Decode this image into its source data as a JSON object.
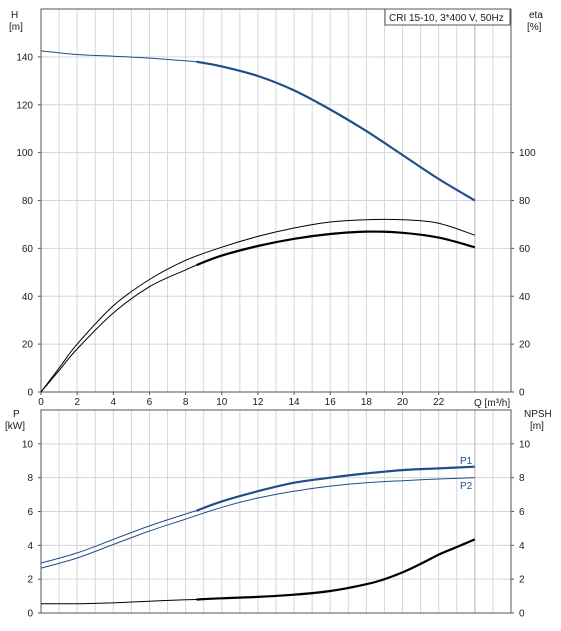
{
  "title": "CRI 15-10, 3*400 V, 50Hz",
  "colors": {
    "blue": "#1f4e8c",
    "black": "#000000",
    "grid": "#d6d6d6"
  },
  "chart_data": [
    {
      "type": "line",
      "panel": "top",
      "left_axis": {
        "label_line1": "H",
        "label_line2": "[m]",
        "range": [
          0,
          160
        ],
        "ticks": [
          "0",
          "20",
          "40",
          "60",
          "80",
          "100",
          "120",
          "140"
        ]
      },
      "right_axis": {
        "label_line1": "eta",
        "label_line2": "[%]",
        "range": [
          0,
          160
        ],
        "ticks": [
          "0",
          "20",
          "40",
          "60",
          "80",
          "100"
        ]
      },
      "x_axis": {
        "label": "Q [m³/h]",
        "range": [
          0,
          26
        ],
        "ticks": [
          "0",
          "2",
          "4",
          "6",
          "8",
          "10",
          "12",
          "14",
          "16",
          "18",
          "20",
          "22"
        ]
      },
      "series": [
        {
          "style": "blue-thin",
          "axis": "left",
          "x": [
            0,
            2,
            4,
            6,
            8.6
          ],
          "y": [
            142.5,
            141,
            140.3,
            139.5,
            138
          ]
        },
        {
          "style": "blue-thick",
          "axis": "left",
          "x": [
            8.6,
            10,
            12,
            14,
            16,
            18,
            20,
            22,
            24
          ],
          "y": [
            138,
            136,
            132,
            126,
            118,
            109,
            99,
            89,
            80
          ]
        },
        {
          "style": "black-thin",
          "axis": "right",
          "x": [
            0,
            1,
            2,
            4,
            6,
            8,
            10,
            12,
            14,
            16,
            18,
            20,
            22,
            24
          ],
          "y": [
            0,
            10,
            20,
            36,
            47,
            55,
            60.5,
            65,
            68.5,
            71,
            72,
            72,
            70.5,
            65.5
          ]
        },
        {
          "style": "black-thin",
          "axis": "right",
          "x": [
            0,
            1,
            2,
            4,
            6,
            8,
            8.6
          ],
          "y": [
            0,
            9,
            18,
            33,
            44,
            51,
            53
          ]
        },
        {
          "style": "black-thick",
          "axis": "right",
          "x": [
            8.6,
            10,
            12,
            14,
            16,
            18,
            20,
            22,
            24
          ],
          "y": [
            53,
            57,
            61,
            64,
            66,
            67,
            66.5,
            64.5,
            60.5
          ]
        }
      ]
    },
    {
      "type": "line",
      "panel": "bottom",
      "left_axis": {
        "label_line1": "P",
        "label_line2": "[kW]",
        "range": [
          0,
          12
        ],
        "ticks": [
          "0",
          "2",
          "4",
          "6",
          "8",
          "10"
        ]
      },
      "right_axis": {
        "label_line1": "NPSH",
        "label_line2": "[m]",
        "range": [
          0,
          12
        ],
        "ticks": [
          "0",
          "2",
          "4",
          "6",
          "8",
          "10"
        ]
      },
      "x_axis": {
        "range": [
          0,
          26
        ]
      },
      "series": [
        {
          "name": "P1",
          "style": "blue-thin",
          "axis": "left",
          "x": [
            0,
            2,
            4,
            6,
            8,
            8.6
          ],
          "y": [
            2.95,
            3.55,
            4.35,
            5.15,
            5.85,
            6.05
          ]
        },
        {
          "name": "P1",
          "style": "blue-thick",
          "axis": "left",
          "x": [
            8.6,
            10,
            12,
            14,
            16,
            18,
            20,
            22,
            24
          ],
          "y": [
            6.05,
            6.6,
            7.2,
            7.7,
            8.0,
            8.25,
            8.45,
            8.55,
            8.65
          ]
        },
        {
          "name": "P2",
          "style": "blue-thin",
          "axis": "left",
          "x": [
            0,
            2,
            4,
            6,
            8,
            10,
            12,
            14,
            16,
            18,
            20,
            22,
            24
          ],
          "y": [
            2.65,
            3.25,
            4.05,
            4.85,
            5.55,
            6.25,
            6.8,
            7.2,
            7.5,
            7.7,
            7.82,
            7.92,
            8.0
          ]
        },
        {
          "style": "black-thin",
          "axis": "right",
          "x": [
            0,
            2,
            4,
            6,
            8,
            8.6
          ],
          "y": [
            0.55,
            0.55,
            0.6,
            0.7,
            0.78,
            0.8
          ]
        },
        {
          "style": "black-thick",
          "axis": "right",
          "x": [
            8.6,
            10,
            12,
            14,
            16,
            18,
            19,
            20,
            21,
            22,
            23,
            24
          ],
          "y": [
            0.8,
            0.87,
            0.95,
            1.08,
            1.3,
            1.7,
            2.0,
            2.4,
            2.9,
            3.45,
            3.9,
            4.35
          ]
        }
      ],
      "labels": [
        "P1",
        "P2"
      ]
    }
  ]
}
